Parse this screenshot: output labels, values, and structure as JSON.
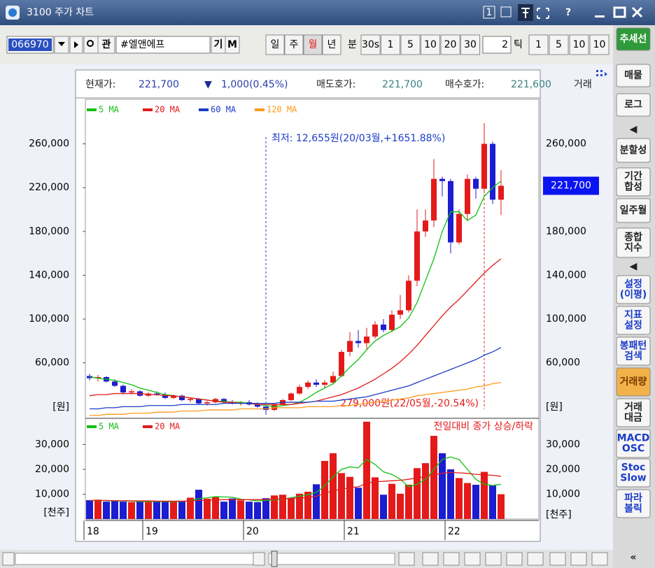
{
  "window": {
    "title": "3100 주가 차트",
    "page_button": "1",
    "help": "?"
  },
  "toolbar": {
    "code": "066970",
    "watch": "관",
    "name": "#엘앤에프",
    "kind": "기",
    "mode": "M",
    "periods": [
      "일",
      "주",
      "월",
      "년"
    ],
    "active_period": "월",
    "minute_label": "분",
    "minutes": [
      "30s",
      "1",
      "5",
      "10",
      "20",
      "30"
    ],
    "count": "2",
    "tick_label": "틱",
    "ticks": [
      "1",
      "5",
      "10",
      "10"
    ]
  },
  "info": {
    "current_label": "현재가:",
    "current": "221,700",
    "sign": "▼",
    "change": "1,000(0.45%)",
    "ask_label": "매도호가:",
    "ask": "221,700",
    "bid_label": "매수호가:",
    "bid": "221,600",
    "volume_label": "거래"
  },
  "sidebar": {
    "items": [
      [
        "추세선"
      ],
      [
        "매물"
      ],
      [
        "로그"
      ],
      [
        "◀"
      ],
      [
        "분할성"
      ],
      [
        "기간",
        "합성"
      ],
      [
        "일주월"
      ],
      [
        "종합",
        "지수"
      ],
      [
        "◀"
      ],
      [
        "설정",
        "(이평)"
      ],
      [
        "지표",
        "설정"
      ],
      [
        "봉패턴",
        "검색"
      ],
      [
        "거래량"
      ],
      [
        "거래",
        "대금"
      ],
      [
        "MACD",
        "OSC"
      ],
      [
        "Stoc",
        "Slow"
      ],
      [
        "파라",
        "볼릭"
      ],
      [
        "«"
      ]
    ]
  },
  "chart_data": [
    {
      "type": "candlestick",
      "up_color": "#e41a1a",
      "down_color": "#1c1cd0",
      "open": [
        48000,
        46000,
        47000,
        43000,
        39000,
        33000,
        34000,
        30000,
        32000,
        31000,
        28000,
        30000,
        26000,
        27000,
        23000,
        24000,
        27000,
        24000,
        23000,
        24000,
        22000,
        20000,
        17000,
        22000,
        26000,
        32000,
        38000,
        42000,
        40000,
        42000,
        48000,
        70000,
        80000,
        78000,
        84000,
        95000,
        90000,
        104000,
        108000,
        135000,
        180000,
        190000,
        228000,
        226000,
        170000,
        196000,
        228000,
        219000,
        260000,
        209000
      ],
      "high": [
        50000,
        49000,
        48000,
        45000,
        40000,
        36000,
        35000,
        33000,
        34000,
        33000,
        31000,
        31000,
        28000,
        28000,
        25000,
        28000,
        28000,
        26000,
        25000,
        26000,
        24000,
        21000,
        23000,
        27000,
        33000,
        40000,
        44000,
        45000,
        44000,
        52000,
        72000,
        88000,
        90000,
        92000,
        98000,
        100000,
        108000,
        122000,
        140000,
        200000,
        200000,
        246000,
        230000,
        228000,
        200000,
        232000,
        230000,
        279000,
        262000,
        236000
      ],
      "low": [
        44000,
        43000,
        42000,
        38000,
        31000,
        31000,
        29000,
        29000,
        30000,
        27000,
        27000,
        25000,
        24000,
        22000,
        21000,
        23000,
        23000,
        22000,
        21000,
        21000,
        19000,
        12655,
        16000,
        21000,
        25000,
        31000,
        36000,
        38000,
        37000,
        40000,
        47000,
        66000,
        74000,
        72000,
        82000,
        88000,
        88000,
        100000,
        106000,
        130000,
        175000,
        184000,
        212000,
        160000,
        168000,
        190000,
        210000,
        215000,
        205000,
        195000
      ],
      "close": [
        46000,
        47000,
        43000,
        39000,
        33000,
        34000,
        30000,
        32000,
        31000,
        28000,
        30000,
        26000,
        27000,
        23000,
        24000,
        27000,
        24000,
        23000,
        24000,
        22000,
        20000,
        17000,
        22000,
        26000,
        32000,
        38000,
        42000,
        40000,
        42000,
        48000,
        70000,
        80000,
        78000,
        84000,
        95000,
        90000,
        104000,
        108000,
        135000,
        180000,
        190000,
        228000,
        226000,
        170000,
        196000,
        228000,
        219000,
        260000,
        209000,
        221700
      ],
      "series": [
        {
          "name": "5 MA",
          "color": "#10c010",
          "values": [
            47000,
            46000,
            45000,
            44000,
            42000,
            40000,
            37000,
            35000,
            33000,
            31000,
            30000,
            29000,
            28000,
            27000,
            26000,
            25000,
            25000,
            24000,
            24000,
            23000,
            22000,
            21000,
            20000,
            21000,
            22000,
            24000,
            28000,
            33000,
            37000,
            41000,
            48000,
            56000,
            63000,
            72000,
            80000,
            85000,
            89000,
            93000,
            101000,
            115000,
            135000,
            155000,
            180000,
            198000,
            198000,
            190000,
            195000,
            212000,
            220000,
            226000
          ]
        },
        {
          "name": "20 MA",
          "color": "#e41a1a",
          "values": [
            30000,
            31000,
            31000,
            32000,
            32000,
            32000,
            32000,
            31000,
            31000,
            30000,
            30000,
            29000,
            28000,
            27000,
            26000,
            25000,
            24000,
            24000,
            23000,
            23000,
            22000,
            22000,
            22000,
            22000,
            22000,
            23000,
            24000,
            25000,
            27000,
            29000,
            31000,
            34000,
            37000,
            41000,
            45000,
            50000,
            55000,
            61000,
            68000,
            76000,
            85000,
            94000,
            103000,
            111000,
            118000,
            126000,
            134000,
            142000,
            149000,
            155000
          ]
        },
        {
          "name": "60 MA",
          "color": "#1c3cc8",
          "values": [
            18000,
            18000,
            19000,
            19000,
            20000,
            20000,
            20000,
            21000,
            21000,
            21000,
            21000,
            22000,
            22000,
            22000,
            22000,
            22000,
            23000,
            23000,
            23000,
            23000,
            23000,
            23000,
            23000,
            24000,
            24000,
            24000,
            24000,
            25000,
            25000,
            25000,
            26000,
            27000,
            28000,
            29000,
            31000,
            33000,
            35000,
            37000,
            39000,
            42000,
            45000,
            48000,
            51000,
            54000,
            57000,
            60000,
            63000,
            67000,
            70000,
            74000
          ]
        },
        {
          "name": "120 MA",
          "color": "#ff9a1a",
          "values": [
            12000,
            12000,
            13000,
            13000,
            13000,
            14000,
            14000,
            14000,
            15000,
            15000,
            15000,
            16000,
            16000,
            16000,
            17000,
            17000,
            17000,
            17000,
            18000,
            18000,
            18000,
            18000,
            19000,
            19000,
            19000,
            19000,
            20000,
            20000,
            20000,
            20000,
            21000,
            21000,
            22000,
            23000,
            24000,
            25000,
            26000,
            27000,
            28000,
            30000,
            31000,
            32000,
            33000,
            34000,
            35000,
            36000,
            38000,
            39000,
            41000,
            42000
          ]
        }
      ],
      "ylim": [
        10000,
        300000
      ],
      "yticks": [
        {
          "value": 60000,
          "label": "60,000"
        },
        {
          "value": 100000,
          "label": "100,000"
        },
        {
          "value": 140000,
          "label": "140,000"
        },
        {
          "value": 180000,
          "label": "180,000"
        },
        {
          "value": 220000,
          "label": "220,000"
        },
        {
          "value": 260000,
          "label": "260,000"
        }
      ],
      "y_unit": "[원]",
      "low_label": "최저: 12,655원(20/03월,+1651.88%)",
      "high_label": "279,000원(22/05월,-20.54%)",
      "low_color": "#1c3cc8",
      "high_color": "#e41a1a"
    },
    {
      "type": "bar",
      "up_color": "#e41a1a",
      "down_color": "#1c1cd0",
      "categories": [
        "18",
        null,
        null,
        null,
        null,
        null,
        null,
        "19",
        null,
        null,
        null,
        null,
        null,
        null,
        null,
        null,
        null,
        null,
        null,
        "20",
        null,
        null,
        null,
        null,
        null,
        null,
        null,
        null,
        null,
        null,
        null,
        "21",
        null,
        null,
        null,
        null,
        null,
        null,
        null,
        null,
        null,
        null,
        null,
        "22",
        null,
        null,
        null,
        null,
        null,
        null
      ],
      "values": [
        7600,
        7800,
        7000,
        7200,
        7000,
        6800,
        7000,
        7200,
        7100,
        6900,
        7000,
        7300,
        8600,
        11800,
        8200,
        9000,
        7000,
        8300,
        7500,
        7000,
        6800,
        8400,
        9500,
        9800,
        8500,
        10200,
        11000,
        14000,
        23400,
        26500,
        18500,
        17000,
        12600,
        39200,
        16800,
        9800,
        14200,
        10200,
        13800,
        20500,
        22500,
        33500,
        26500,
        20000,
        16500,
        14500,
        13800,
        19000,
        13500,
        10000
      ],
      "series": [
        {
          "name": "5 MA",
          "color": "#10c010",
          "values": [
            7400,
            7500,
            7400,
            7300,
            7300,
            7200,
            7000,
            7000,
            7100,
            7000,
            7000,
            7100,
            7400,
            8200,
            8600,
            9000,
            8900,
            8800,
            8000,
            7700,
            7300,
            7500,
            7800,
            8000,
            8600,
            9200,
            9800,
            10700,
            13400,
            17000,
            20000,
            21000,
            20600,
            24000,
            22000,
            19000,
            18000,
            16000,
            13000,
            14000,
            16000,
            20000,
            24000,
            25000,
            24000,
            20000,
            16000,
            14000,
            13500,
            14000
          ]
        },
        {
          "name": "20 MA",
          "color": "#e41a1a",
          "values": [
            7500,
            7500,
            7500,
            7400,
            7400,
            7300,
            7300,
            7300,
            7200,
            7200,
            7200,
            7200,
            7300,
            7500,
            7600,
            7700,
            7800,
            7800,
            7800,
            7800,
            7800,
            7900,
            8000,
            8100,
            8300,
            8500,
            8700,
            9200,
            10300,
            11400,
            12000,
            12600,
            13000,
            14400,
            15000,
            15200,
            15400,
            15600,
            16000,
            16600,
            17000,
            17800,
            18400,
            18800,
            18600,
            18400,
            18000,
            17800,
            17600,
            17200
          ]
        }
      ],
      "ylim": [
        0,
        40000
      ],
      "yticks": [
        {
          "value": 10000,
          "label": "10,000"
        },
        {
          "value": 20000,
          "label": "20,000"
        },
        {
          "value": 30000,
          "label": "30,000"
        }
      ],
      "y_unit": "[천주]",
      "note": "전일대비 종가 상승/하락",
      "note_color": "#e41a1a"
    }
  ]
}
